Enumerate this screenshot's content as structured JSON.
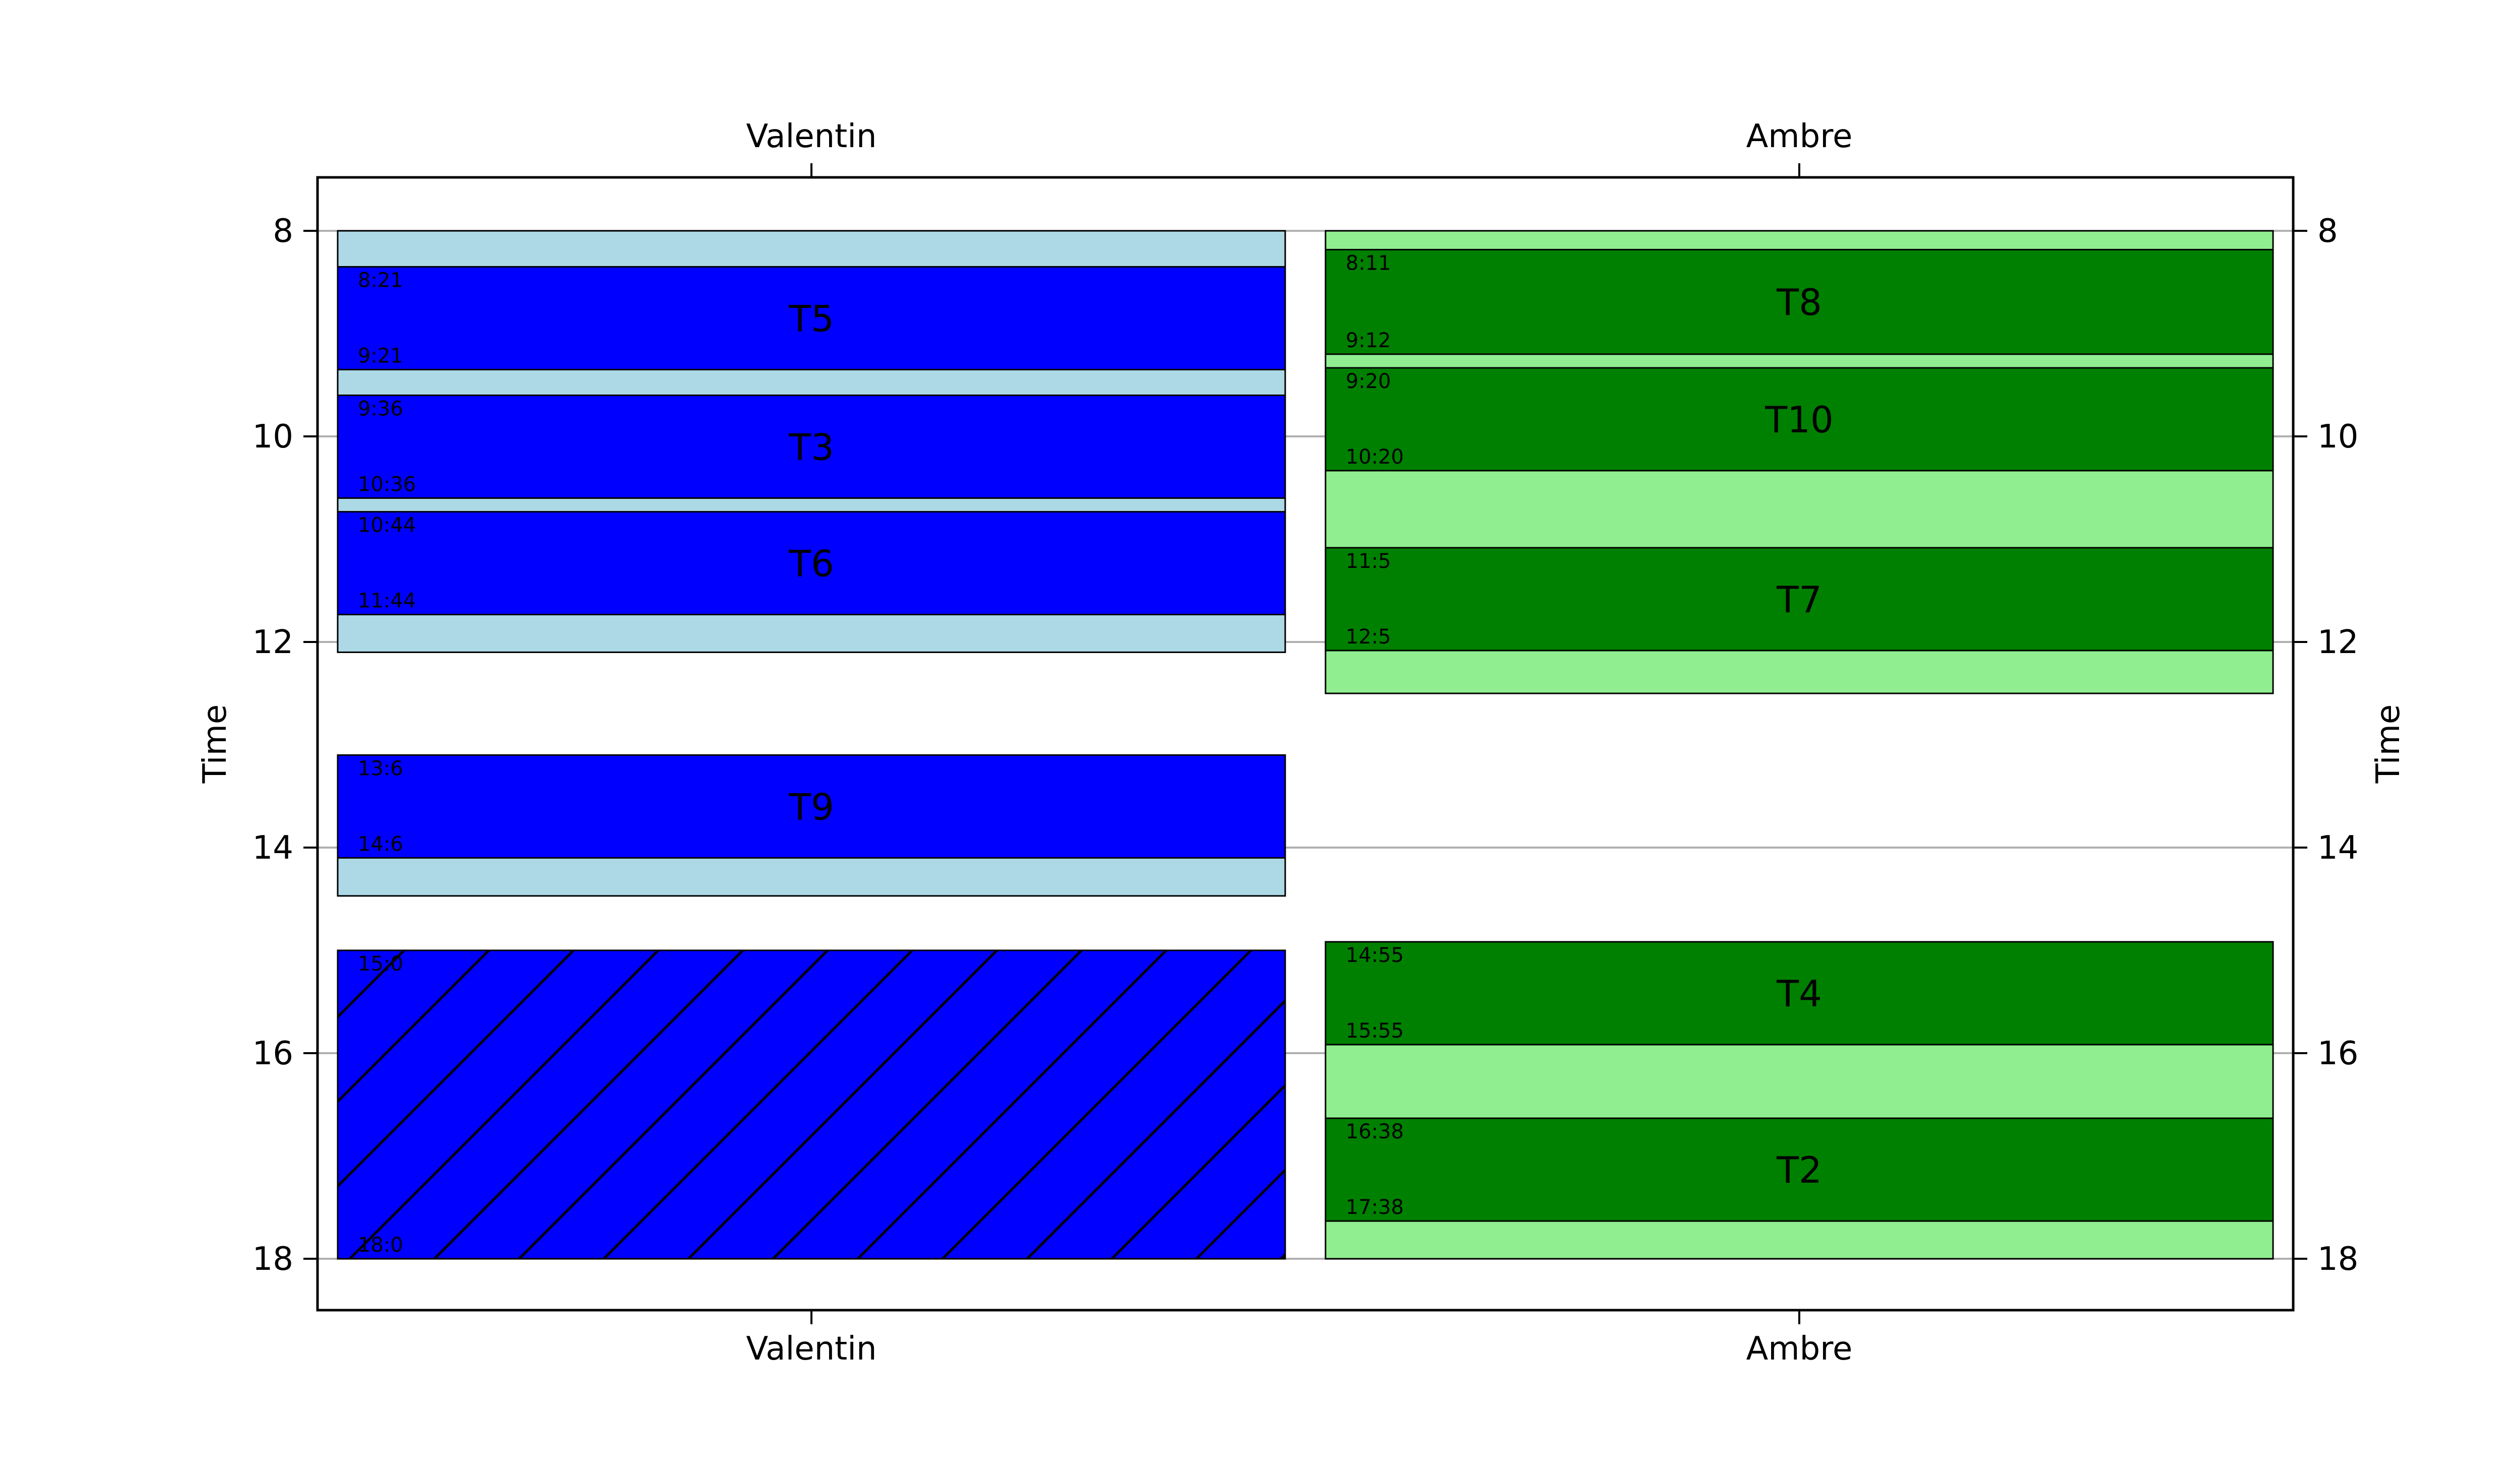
{
  "chart_data": {
    "type": "gantt",
    "title": "",
    "ylabel": "Time",
    "y_ticks": [
      8,
      10,
      12,
      14,
      16,
      18
    ],
    "ylim": [
      18.5,
      7.48
    ],
    "grid": true,
    "categories": [
      "Valentin",
      "Ambre"
    ],
    "colors": {
      "Valentin": {
        "availability": "#add8e6",
        "task": "#0000ff"
      },
      "Ambre": {
        "availability": "#90ee90",
        "task": "#008000"
      }
    },
    "availability": [
      {
        "person": "Valentin",
        "start": 8.0,
        "end": 12.1
      },
      {
        "person": "Valentin",
        "start": 13.1,
        "end": 14.47
      },
      {
        "person": "Ambre",
        "start": 8.0,
        "end": 12.5
      }
    ],
    "tasks": [
      {
        "person": "Valentin",
        "label": "T5",
        "start": 8.35,
        "end": 9.35,
        "start_label": "8:21",
        "end_label": "9:21",
        "hatched": false
      },
      {
        "person": "Valentin",
        "label": "T3",
        "start": 9.6,
        "end": 10.6,
        "start_label": "9:36",
        "end_label": "10:36",
        "hatched": false
      },
      {
        "person": "Valentin",
        "label": "T6",
        "start": 10.733,
        "end": 11.733,
        "start_label": "10:44",
        "end_label": "11:44",
        "hatched": false
      },
      {
        "person": "Valentin",
        "label": "T9",
        "start": 13.1,
        "end": 14.1,
        "start_label": "13:6",
        "end_label": "14:6",
        "hatched": false
      },
      {
        "person": "Valentin",
        "label": "",
        "start": 15.0,
        "end": 18.0,
        "start_label": "15:0",
        "end_label": "18:0",
        "hatched": true
      },
      {
        "person": "Ambre",
        "label": "T8",
        "start": 8.183,
        "end": 9.2,
        "start_label": "8:11",
        "end_label": "9:12",
        "hatched": false
      },
      {
        "person": "Ambre",
        "label": "T10",
        "start": 9.333,
        "end": 10.333,
        "start_label": "9:20",
        "end_label": "10:20",
        "hatched": false
      },
      {
        "person": "Ambre",
        "label": "T7",
        "start": 11.083,
        "end": 12.083,
        "start_label": "11:5",
        "end_label": "12:5",
        "hatched": false
      },
      {
        "person": "Ambre",
        "label": "T4",
        "start": 14.917,
        "end": 15.917,
        "start_label": "14:55",
        "end_label": "15:55",
        "hatched": false
      },
      {
        "person": "Ambre",
        "label": "T2",
        "start": 16.633,
        "end": 17.633,
        "start_label": "16:38",
        "end_label": "17:38",
        "hatched": false
      }
    ],
    "extra_availability": [
      {
        "person": "Valentin",
        "start": 15.0,
        "end": 18.0
      },
      {
        "person": "Ambre",
        "start": 14.917,
        "end": 18.0
      }
    ]
  }
}
